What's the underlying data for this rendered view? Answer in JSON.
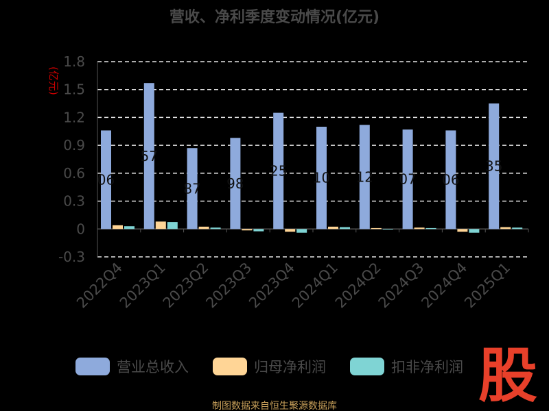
{
  "chart_data": {
    "type": "bar",
    "title": "营收、净利季度变动情况(亿元)",
    "ylabel": "(亿元)",
    "ylim": [
      -0.3,
      1.8
    ],
    "yticks": [
      "1.8",
      "1.5",
      "1.2",
      "0.9",
      "0.6",
      "0.3",
      "0",
      "-0.3"
    ],
    "grid": true,
    "legend_position": "bottom",
    "categories": [
      "2022Q4",
      "2023Q1",
      "2023Q2",
      "2023Q3",
      "2023Q4",
      "2024Q1",
      "2024Q2",
      "2024Q3",
      "2024Q4",
      "2025Q1"
    ],
    "series": [
      {
        "name": "营业总收入",
        "color": "#8eaadc",
        "values": [
          1.06,
          1.57,
          0.87,
          0.98,
          1.25,
          1.1,
          1.12,
          1.07,
          1.06,
          1.35
        ],
        "data_labels": [
          "06",
          "57",
          "87",
          "98",
          "25",
          "10",
          "12",
          "07",
          "06",
          "35"
        ]
      },
      {
        "name": "归母净利润",
        "color": "#ffd596",
        "values": [
          0.04,
          0.08,
          0.025,
          -0.015,
          -0.03,
          0.025,
          0.01,
          0.015,
          -0.03,
          0.02
        ]
      },
      {
        "name": "扣非净利润",
        "color": "#7fd4d4",
        "values": [
          0.03,
          0.075,
          0.015,
          -0.025,
          -0.04,
          0.02,
          -0.005,
          0.01,
          -0.04,
          0.015
        ]
      }
    ]
  },
  "watermark_text": "股",
  "footer": "制图数据来自恒生聚源数据库"
}
